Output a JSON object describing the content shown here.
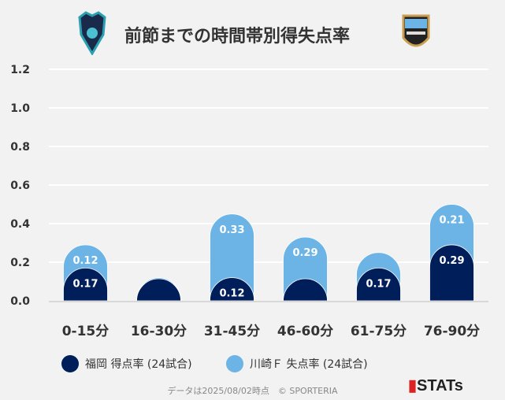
{
  "title": "前節までの時間帯別得失点率",
  "colors": {
    "fukuoka": "#001e5a",
    "kawasaki": "#6cb4e6"
  },
  "legend": {
    "fukuoka": "福岡 得点率 (24試合)",
    "kawasaki": "川崎Ｆ 失点率 (24試合)"
  },
  "footer": "データは2025/08/02時点　© SPORTERIA",
  "brand": "STATs",
  "chart_data": {
    "type": "bar",
    "stacked": true,
    "categories": [
      "0-15分",
      "16-30分",
      "31-45分",
      "46-60分",
      "61-75分",
      "76-90分"
    ],
    "series": [
      {
        "name": "福岡 得点率 (24試合)",
        "values": [
          0.17,
          0.08,
          0.12,
          0.04,
          0.17,
          0.29
        ],
        "labels": [
          "0.17",
          "",
          "0.12",
          "",
          "0.17",
          "0.29"
        ]
      },
      {
        "name": "川崎Ｆ 失点率 (24試合)",
        "values": [
          0.12,
          0.04,
          0.33,
          0.29,
          0.08,
          0.21
        ],
        "labels": [
          "0.12",
          "",
          "0.33",
          "0.29",
          "",
          "0.21"
        ]
      }
    ],
    "ylim": [
      0,
      1.2
    ],
    "yticks": [
      "0.0",
      "0.2",
      "0.4",
      "0.6",
      "0.8",
      "1.0",
      "1.2"
    ],
    "grid": true,
    "legend_position": "bottom"
  }
}
